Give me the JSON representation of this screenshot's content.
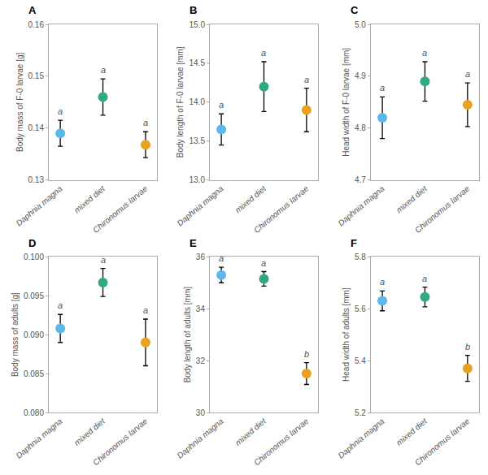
{
  "chart_data": [
    {
      "type": "scatter",
      "title": "A",
      "ylabel": "Body mass of F-0 larvae [g]",
      "categories": [
        "Daphnia magna",
        "mixed diet",
        "Chironomus larvae"
      ],
      "values": [
        0.139,
        0.146,
        0.1368
      ],
      "errors": [
        0.0025,
        0.0035,
        0.0025
      ],
      "annotations": [
        "a",
        "a",
        "a"
      ],
      "colors": [
        "#5BB8E8",
        "#2EAA80",
        "#E8A020"
      ],
      "marker": "circle",
      "ylim": [
        0.13,
        0.16
      ],
      "yticks": [
        0.13,
        0.14,
        0.15,
        0.16
      ],
      "grid": false
    },
    {
      "type": "scatter",
      "title": "B",
      "ylabel": "Body length of F-0 larvae [mm]",
      "categories": [
        "Daphnia magna",
        "mixed diet",
        "Chironomus larvae"
      ],
      "values": [
        13.65,
        14.2,
        13.9
      ],
      "errors": [
        0.2,
        0.32,
        0.28
      ],
      "annotations": [
        "a",
        "a",
        "a"
      ],
      "colors": [
        "#5BB8E8",
        "#2EAA80",
        "#E8A020"
      ],
      "marker": "circle",
      "ylim": [
        13.0,
        15.0
      ],
      "yticks": [
        {
          "value": 13.0,
          "label": "13.0"
        },
        13.5,
        {
          "value": 14.0,
          "label": "14.0"
        },
        14.5,
        {
          "value": 15.0,
          "label": "15.0"
        }
      ],
      "grid": false
    },
    {
      "type": "scatter",
      "title": "C",
      "ylabel": "Head width of F-0 larvae [mm]",
      "categories": [
        "Daphnia magna",
        "mixed diet",
        "Chironomus larvae"
      ],
      "values": [
        4.82,
        4.89,
        4.845
      ],
      "errors": [
        0.04,
        0.038,
        0.042
      ],
      "annotations": [
        "a",
        "a",
        "a"
      ],
      "colors": [
        "#5BB8E8",
        "#2EAA80",
        "#E8A020"
      ],
      "marker": "circle",
      "ylim": [
        4.7,
        5.0
      ],
      "yticks": [
        4.7,
        4.8,
        4.9,
        {
          "value": 5.0,
          "label": "5.0"
        }
      ],
      "grid": false
    },
    {
      "type": "scatter",
      "title": "D",
      "ylabel": "Body mass of adults [g]",
      "categories": [
        "Daphnia magna",
        "mixed diet",
        "Chironomus larvae"
      ],
      "values": [
        0.0908,
        0.0967,
        0.089
      ],
      "errors": [
        0.0018,
        0.0018,
        0.003
      ],
      "annotations": [
        "a",
        "a",
        "a"
      ],
      "colors": [
        "#5BB8E8",
        "#2EAA80",
        "#E8A020"
      ],
      "marker": "circle",
      "ylim": [
        0.08,
        0.1
      ],
      "yticks": [
        {
          "value": 0.08,
          "label": "0.080"
        },
        0.085,
        {
          "value": 0.09,
          "label": "0.090"
        },
        0.095,
        {
          "value": 0.1,
          "label": "0.100"
        }
      ],
      "grid": false
    },
    {
      "type": "scatter",
      "title": "E",
      "ylabel": "Body length of adults [mm]",
      "categories": [
        "Daphnia magna",
        "mixed diet",
        "Chironomus larvae"
      ],
      "values": [
        35.3,
        35.15,
        31.5
      ],
      "errors": [
        0.3,
        0.28,
        0.42
      ],
      "annotations": [
        "a",
        "a",
        "b"
      ],
      "colors": [
        "#5BB8E8",
        "#2EAA80",
        "#E8A020"
      ],
      "marker": "circle",
      "ylim": [
        30,
        36
      ],
      "yticks": [
        30,
        32,
        34,
        36
      ],
      "grid": false
    },
    {
      "type": "scatter",
      "title": "F",
      "ylabel": "Head width of adults [mm]",
      "categories": [
        "Daphnia magna",
        "mixed diet",
        "Chironomus larvae"
      ],
      "values": [
        5.63,
        5.645,
        5.37
      ],
      "errors": [
        0.038,
        0.038,
        0.05
      ],
      "annotations": [
        "a",
        "a",
        "b"
      ],
      "colors": [
        "#5BB8E8",
        "#2EAA80",
        "#E8A020"
      ],
      "marker": "circle",
      "ylim": [
        5.2,
        5.8
      ],
      "yticks": [
        5.2,
        5.4,
        5.6,
        5.8
      ],
      "grid": false
    }
  ]
}
